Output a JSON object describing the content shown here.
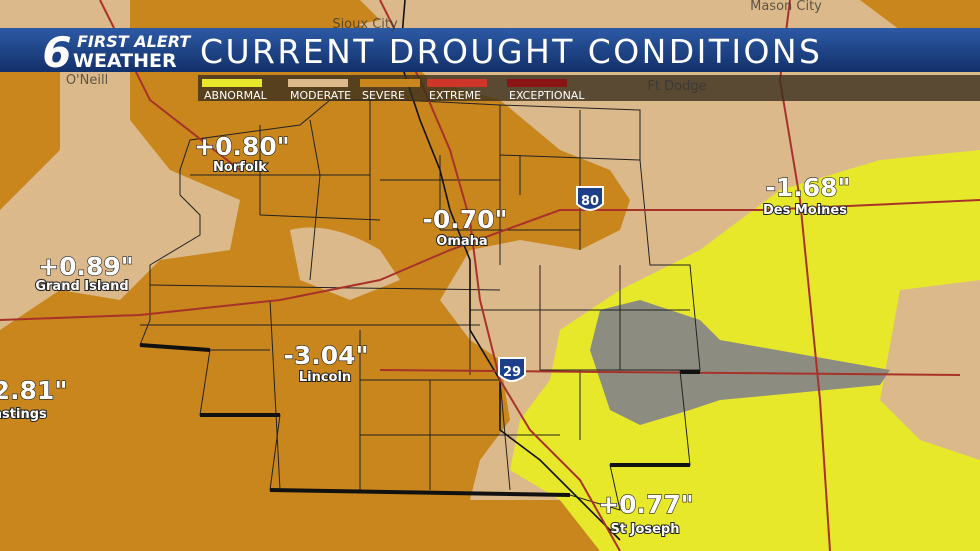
{
  "header": {
    "logo_number": "6",
    "logo_line1": "FIRST ALERT",
    "logo_line2": "WEATHER",
    "title": "CURRENT DROUGHT CONDITIONS"
  },
  "legend": [
    {
      "label": "ABNORMAL",
      "color": "#e8e82a"
    },
    {
      "label": "MODERATE",
      "color": "#dcb98a"
    },
    {
      "label": "SEVERE",
      "color": "#c8861c"
    },
    {
      "label": "EXTREME",
      "color": "#d0352a"
    },
    {
      "label": "EXCEPTIONAL",
      "color": "#8a1414"
    }
  ],
  "cities": [
    {
      "name": "Norfolk",
      "value": "+0.80\""
    },
    {
      "name": "Omaha",
      "value": "-0.70\""
    },
    {
      "name": "Des Moines",
      "value": "-1.68\""
    },
    {
      "name": "Grand Island",
      "value": "+0.89\""
    },
    {
      "name": "Lincoln",
      "value": "-3.04\""
    },
    {
      "name": "astings",
      "value": "2.81\""
    },
    {
      "name": "St Joseph",
      "value": "+0.77\""
    }
  ],
  "background_labels": [
    "O'Neill",
    "Sioux City",
    "Mason City",
    "Ft Dodge"
  ],
  "highways": [
    "80",
    "29"
  ]
}
